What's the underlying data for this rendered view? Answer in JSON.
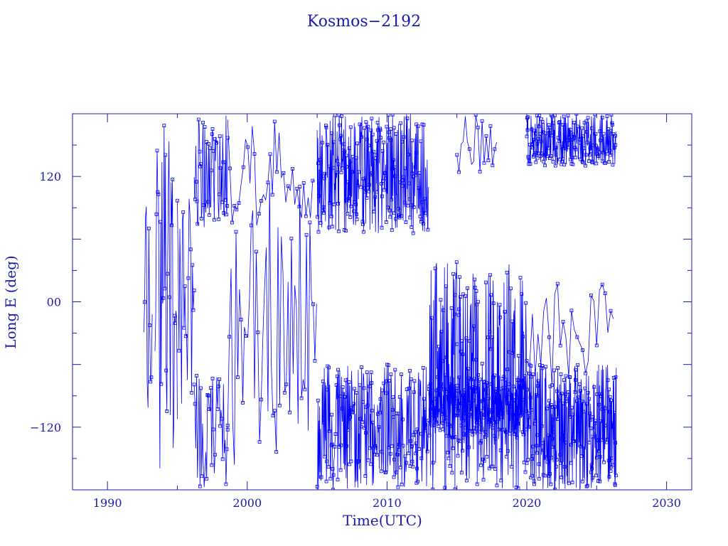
{
  "colors": {
    "background": "#ffffff",
    "axes": "#1a1ab0",
    "text": "#1a1ab0",
    "data": "#0000ff"
  },
  "chart_data": {
    "type": "line",
    "title": "Kosmos−2192",
    "xlabel": "Time(UTC)",
    "ylabel": "Long E (deg)",
    "xlim": [
      1987.5,
      2031.8
    ],
    "ylim": [
      -180,
      180
    ],
    "x_ticks": [
      1990,
      2000,
      2010,
      2020,
      2030
    ],
    "x_tick_labels": [
      "1990",
      "2000",
      "2010",
      "2020",
      "2030"
    ],
    "y_ticks": [
      120,
      0,
      -120
    ],
    "y_tick_labels": [
      "120",
      "00",
      "−120"
    ],
    "markers": "square",
    "grid": false,
    "legend": "none",
    "regimes": [
      {
        "from": 1992.6,
        "to": 1993.2,
        "lo": -115,
        "hi": 105,
        "step": 0.06
      },
      {
        "from": 1993.4,
        "to": 1995.0,
        "lo": -180,
        "hi": 180,
        "step": 0.05
      },
      {
        "from": 1995.0,
        "to": 1996.2,
        "lo": -120,
        "hi": 100,
        "step": 0.06
      },
      {
        "from": 1996.2,
        "to": 1998.6,
        "lo": 70,
        "hi": 180,
        "step": 0.04
      },
      {
        "from": 1996.2,
        "to": 1998.6,
        "lo": -180,
        "hi": -70,
        "step": 0.06
      },
      {
        "from": 1998.6,
        "to": 2005.0,
        "lo": -160,
        "hi": 120,
        "step": 0.12
      },
      {
        "from": 1998.6,
        "to": 2005.0,
        "lo": 70,
        "hi": 180,
        "step": 0.16
      },
      {
        "from": 2005.0,
        "to": 2013.0,
        "lo": 65,
        "hi": 180,
        "step": 0.025
      },
      {
        "from": 2005.0,
        "to": 2013.0,
        "lo": -180,
        "hi": -60,
        "step": 0.03
      },
      {
        "from": 2013.0,
        "to": 2020.0,
        "lo": -180,
        "hi": 40,
        "step": 0.03
      },
      {
        "from": 2013.0,
        "to": 2020.0,
        "lo": -130,
        "hi": -70,
        "step": 0.02
      },
      {
        "from": 2015.0,
        "to": 2018.0,
        "lo": 120,
        "hi": 180,
        "step": 0.15
      },
      {
        "from": 2020.0,
        "to": 2026.4,
        "lo": -180,
        "hi": -60,
        "step": 0.02
      },
      {
        "from": 2020.0,
        "to": 2026.4,
        "lo": 130,
        "hi": 180,
        "step": 0.025
      },
      {
        "from": 2020.0,
        "to": 2026.4,
        "lo": -80,
        "hi": 20,
        "step": 0.2
      }
    ]
  }
}
